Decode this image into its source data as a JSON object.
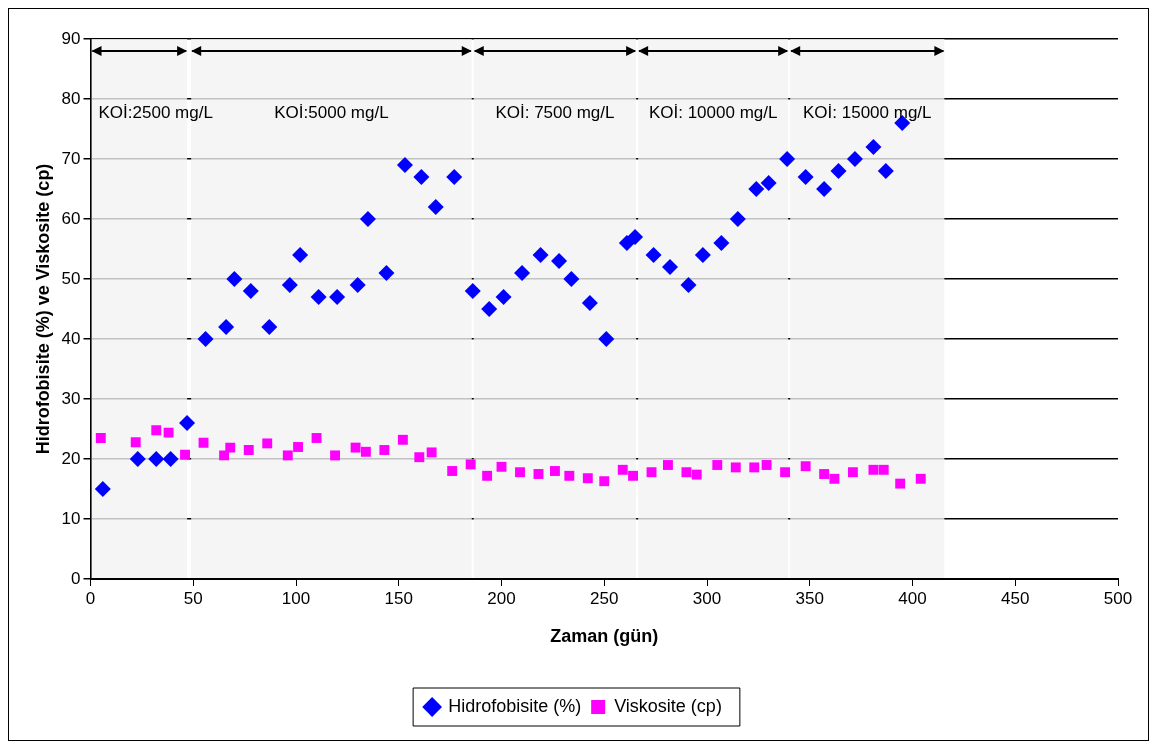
{
  "chart_data": {
    "type": "scatter",
    "xlabel": "Zaman (gün)",
    "ylabel": "Hidrofobisite (%) ve Viskosite (cp)",
    "xlim": [
      0,
      500
    ],
    "xticks": [
      0,
      50,
      100,
      150,
      200,
      250,
      300,
      350,
      400,
      450,
      500
    ],
    "ylim": [
      0,
      90
    ],
    "yticks": [
      0,
      10,
      20,
      30,
      40,
      50,
      60,
      70,
      80,
      90
    ],
    "grid": "y",
    "legend": "bottom",
    "series": [
      {
        "name": "Hidrofobisite (%)",
        "color": "#0000ff",
        "marker": "diamond",
        "x": [
          6,
          23,
          32,
          39,
          47,
          56,
          66,
          70,
          78,
          87,
          97,
          102,
          111,
          120,
          130,
          135,
          144,
          153,
          161,
          168,
          177,
          186,
          194,
          201,
          210,
          219,
          228,
          234,
          243,
          251,
          261,
          265,
          274,
          282,
          291,
          298,
          307,
          315,
          324,
          330,
          339,
          348,
          357,
          364,
          372,
          381,
          387,
          395
        ],
        "values": [
          15,
          20,
          20,
          20,
          26,
          40,
          42,
          50,
          48,
          42,
          49,
          54,
          47,
          47,
          49,
          60,
          51,
          69,
          67,
          62,
          67,
          48,
          45,
          47,
          51,
          54,
          53,
          50,
          46,
          40,
          56,
          57,
          54,
          52,
          49,
          54,
          56,
          60,
          65,
          66,
          70,
          67,
          65,
          68,
          70,
          72,
          68,
          76
        ]
      },
      {
        "name": "Viskosite (cp)",
        "color": "#ff00ff",
        "marker": "square",
        "x": [
          5,
          22,
          32,
          38,
          46,
          55,
          65,
          68,
          77,
          86,
          96,
          101,
          110,
          119,
          129,
          134,
          143,
          152,
          160,
          166,
          176,
          185,
          193,
          200,
          209,
          218,
          226,
          233,
          242,
          250,
          259,
          264,
          273,
          281,
          290,
          295,
          305,
          314,
          323,
          329,
          338,
          348,
          357,
          362,
          371,
          381,
          386,
          394,
          404
        ],
        "values": [
          23.5,
          22.8,
          24.8,
          24.4,
          20.7,
          22.7,
          20.6,
          21.9,
          21.5,
          22.6,
          20.6,
          22,
          23.5,
          20.6,
          21.9,
          21.2,
          21.5,
          23.2,
          20.3,
          21.1,
          18,
          19.1,
          17.2,
          18.7,
          17.8,
          17.5,
          18,
          17.2,
          16.8,
          16.3,
          18.2,
          17.2,
          17.8,
          19,
          17.8,
          17.4,
          19,
          18.6,
          18.6,
          19,
          17.8,
          18.8,
          17.5,
          16.7,
          17.8,
          18.2,
          18.2,
          15.9,
          16.7
        ]
      }
    ],
    "bands": [
      {
        "axis": "x",
        "from": 0,
        "to": 47.5,
        "label": "KOİ:2500 mg/L",
        "color": "#f2f2f2"
      },
      {
        "axis": "x",
        "from": 48.5,
        "to": 186,
        "label": "KOİ:5000 mg/L",
        "color": "#f2f2f2"
      },
      {
        "axis": "x",
        "from": 186,
        "to": 266,
        "label": "KOİ: 7500 mg/L",
        "color": "#f2f2f2"
      },
      {
        "axis": "x",
        "from": 266,
        "to": 340,
        "label": "KOİ: 10000 mg/L",
        "color": "#f2f2f2"
      },
      {
        "axis": "x",
        "from": 340,
        "to": 416,
        "label": "KOİ: 15000 mg/L",
        "color": "#f2f2f2"
      }
    ]
  }
}
